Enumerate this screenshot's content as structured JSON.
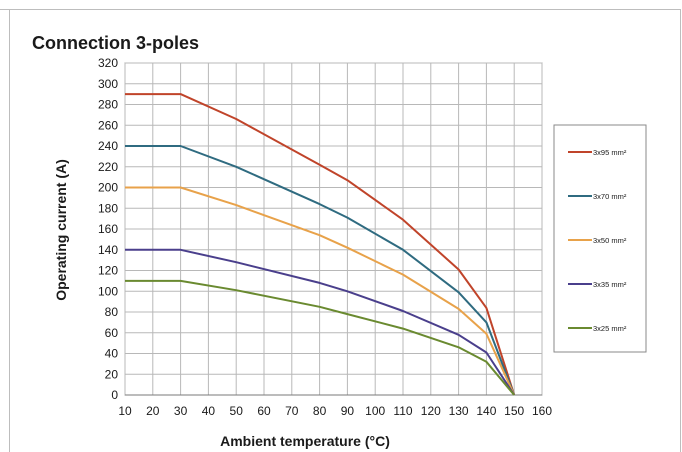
{
  "chart_data": {
    "type": "line",
    "title": "Connection 3-poles",
    "xlabel": "Ambient temperature  (°C)",
    "ylabel": "Operating current  (A)",
    "xlim": [
      10,
      160
    ],
    "ylim": [
      0,
      320
    ],
    "xticks": [
      10,
      20,
      30,
      40,
      50,
      60,
      70,
      80,
      90,
      100,
      110,
      120,
      130,
      140,
      150,
      160
    ],
    "yticks": [
      0,
      20,
      40,
      60,
      80,
      100,
      120,
      140,
      160,
      180,
      200,
      220,
      240,
      260,
      280,
      300,
      320
    ],
    "grid": true,
    "legend_position": "right",
    "series": [
      {
        "name": "3x95 mm²",
        "color": "#c0442a",
        "points": [
          [
            10,
            290
          ],
          [
            30,
            290
          ],
          [
            50,
            266
          ],
          [
            80,
            222
          ],
          [
            90,
            207
          ],
          [
            110,
            169
          ],
          [
            130,
            121
          ],
          [
            140,
            84
          ],
          [
            150,
            0
          ]
        ]
      },
      {
        "name": "3x70 mm²",
        "color": "#2f6b80",
        "points": [
          [
            10,
            240
          ],
          [
            30,
            240
          ],
          [
            50,
            220
          ],
          [
            80,
            184
          ],
          [
            90,
            171
          ],
          [
            110,
            140
          ],
          [
            130,
            99
          ],
          [
            140,
            70
          ],
          [
            150,
            0
          ]
        ]
      },
      {
        "name": "3x50 mm²",
        "color": "#e8a24a",
        "points": [
          [
            10,
            200
          ],
          [
            30,
            200
          ],
          [
            50,
            183
          ],
          [
            80,
            154
          ],
          [
            90,
            142
          ],
          [
            110,
            116
          ],
          [
            130,
            83
          ],
          [
            140,
            59
          ],
          [
            150,
            0
          ]
        ]
      },
      {
        "name": "3x35 mm²",
        "color": "#4a3f8c",
        "points": [
          [
            10,
            140
          ],
          [
            30,
            140
          ],
          [
            50,
            128
          ],
          [
            80,
            108
          ],
          [
            90,
            100
          ],
          [
            110,
            81
          ],
          [
            130,
            58
          ],
          [
            140,
            41
          ],
          [
            150,
            0
          ]
        ]
      },
      {
        "name": "3x25 mm²",
        "color": "#6a8a30",
        "points": [
          [
            10,
            110
          ],
          [
            30,
            110
          ],
          [
            50,
            101
          ],
          [
            80,
            85
          ],
          [
            90,
            78
          ],
          [
            110,
            64
          ],
          [
            130,
            46
          ],
          [
            140,
            32
          ],
          [
            150,
            0
          ]
        ]
      }
    ]
  }
}
